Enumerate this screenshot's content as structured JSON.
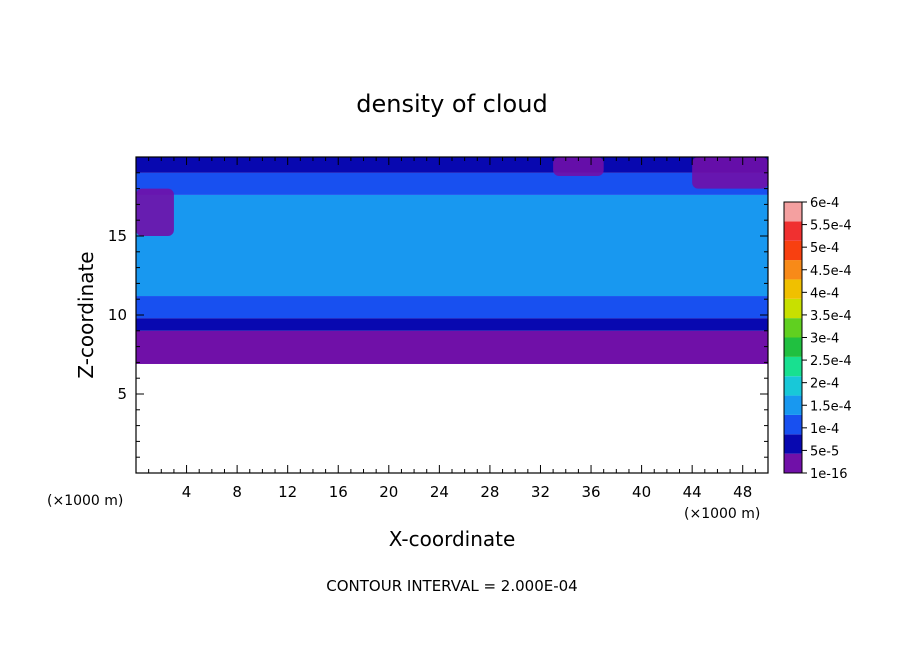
{
  "chart_data": {
    "type": "heatmap",
    "title": "density of cloud",
    "xlabel": "X-coordinate",
    "ylabel": "Z-coordinate",
    "x_unit": "(×1000 m)",
    "z_unit": "(×1000 m)",
    "xlim": [
      0,
      50
    ],
    "zlim": [
      0,
      20
    ],
    "x_ticks": [
      "4",
      "8",
      "12",
      "16",
      "20",
      "24",
      "28",
      "32",
      "36",
      "40",
      "44",
      "48"
    ],
    "x_tick_values": [
      4,
      8,
      12,
      16,
      20,
      24,
      28,
      32,
      36,
      40,
      44,
      48
    ],
    "z_ticks": [
      "5",
      "10",
      "15"
    ],
    "z_tick_values": [
      5,
      10,
      15
    ],
    "footer": "CONTOUR INTERVAL = 2.000E-04",
    "colorbar": {
      "labels": [
        "6e-4",
        "5.5e-4",
        "5e-4",
        "4.5e-4",
        "4e-4",
        "3.5e-4",
        "3e-4",
        "2.5e-4",
        "2e-4",
        "1.5e-4",
        "1e-4",
        "5e-5",
        "1e-16"
      ],
      "colors": [
        "#f4a0a0",
        "#f03030",
        "#f84010",
        "#f88a18",
        "#f0c000",
        "#c8e000",
        "#60d020",
        "#20c040",
        "#18e090",
        "#18c8d8",
        "#1898f0",
        "#1850f0",
        "#0808b0",
        "#7010a8"
      ]
    },
    "cloud_base_z": 6.9,
    "layers": [
      {
        "z_from": 6.9,
        "z_to": 9.0,
        "level": "1e-16",
        "color": "#7010a8"
      },
      {
        "z_from": 9.0,
        "z_to": 9.8,
        "level": "5e-5",
        "color": "#0808b0"
      },
      {
        "z_from": 9.8,
        "z_to": 11.2,
        "level": "1e-4",
        "color": "#1850f0"
      },
      {
        "z_from": 11.2,
        "z_to": 17.6,
        "level": "1.5e-4",
        "color": "#1898f0"
      },
      {
        "z_from": 17.6,
        "z_to": 19.0,
        "level": "1e-4",
        "color": "#1850f0"
      },
      {
        "z_from": 19.0,
        "z_to": 20.0,
        "level": "5e-5",
        "color": "#0808b0"
      }
    ],
    "patches": [
      {
        "x": [
          0,
          3
        ],
        "z": [
          15,
          18
        ],
        "color": "#7010a8"
      },
      {
        "x": [
          44,
          50
        ],
        "z": [
          18,
          20
        ],
        "color": "#7010a8"
      },
      {
        "x": [
          33,
          37
        ],
        "z": [
          18.8,
          20
        ],
        "color": "#7010a8"
      }
    ]
  }
}
